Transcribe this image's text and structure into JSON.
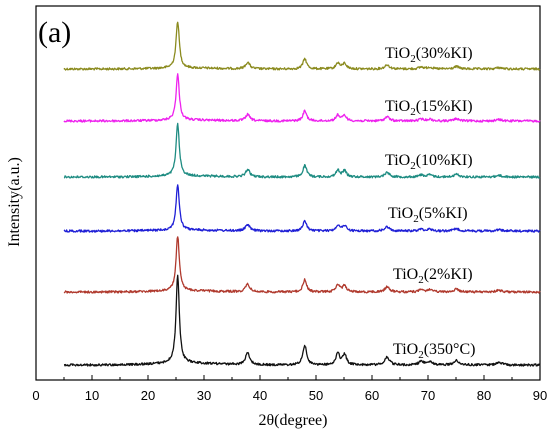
{
  "chart_data": {
    "type": "line",
    "panel_label": "(a)",
    "xlabel": "2θ(degree)",
    "ylabel": "Intensity(a.u.)",
    "xlim": [
      0,
      90
    ],
    "x_ticks": [
      0,
      10,
      20,
      30,
      40,
      50,
      60,
      70,
      80,
      90
    ],
    "y_ticks": [],
    "grid": false,
    "legend": "none",
    "peaks": [
      {
        "x": 25.3,
        "w": 0.35,
        "h": 1.0
      },
      {
        "x": 37.8,
        "w": 0.45,
        "h": 0.14
      },
      {
        "x": 48.0,
        "w": 0.4,
        "h": 0.22
      },
      {
        "x": 53.9,
        "w": 0.4,
        "h": 0.13
      },
      {
        "x": 55.1,
        "w": 0.4,
        "h": 0.12
      },
      {
        "x": 62.7,
        "w": 0.5,
        "h": 0.09
      },
      {
        "x": 68.8,
        "w": 0.5,
        "h": 0.04
      },
      {
        "x": 70.3,
        "w": 0.5,
        "h": 0.04
      },
      {
        "x": 75.1,
        "w": 0.55,
        "h": 0.05
      },
      {
        "x": 82.7,
        "w": 0.6,
        "h": 0.03
      }
    ],
    "x_range_data": [
      5,
      90
    ],
    "series": [
      {
        "name": "TiO2(30%KI)",
        "label_main": "TiO",
        "label_sub": "2",
        "label_tail": "(30%KI)",
        "color": "#8b8b1f",
        "scale": 0.9
      },
      {
        "name": "TiO2(15%KI)",
        "label_main": "TiO",
        "label_sub": "2",
        "label_tail": "(15%KI)",
        "color": "#ee22ee",
        "scale": 0.95
      },
      {
        "name": "TiO2(10%KI)",
        "label_main": "TiO",
        "label_sub": "2",
        "label_tail": "(10%KI)",
        "color": "#1e8c82",
        "scale": 1.0
      },
      {
        "name": "TiO2(5%KI)",
        "label_main": "TiO",
        "label_sub": "2",
        "label_tail": "(5%KI)",
        "color": "#1f1fd6",
        "scale": 0.95
      },
      {
        "name": "TiO2(2%KI)",
        "label_main": "TiO",
        "label_sub": "2",
        "label_tail": "(2%KI)",
        "color": "#b03a2e",
        "scale": 1.0
      },
      {
        "name": "TiO2(350°C)",
        "label_main": "TiO",
        "label_sub": "2",
        "label_tail": "(350°C)",
        "color": "#111111",
        "scale": 1.3
      }
    ]
  }
}
